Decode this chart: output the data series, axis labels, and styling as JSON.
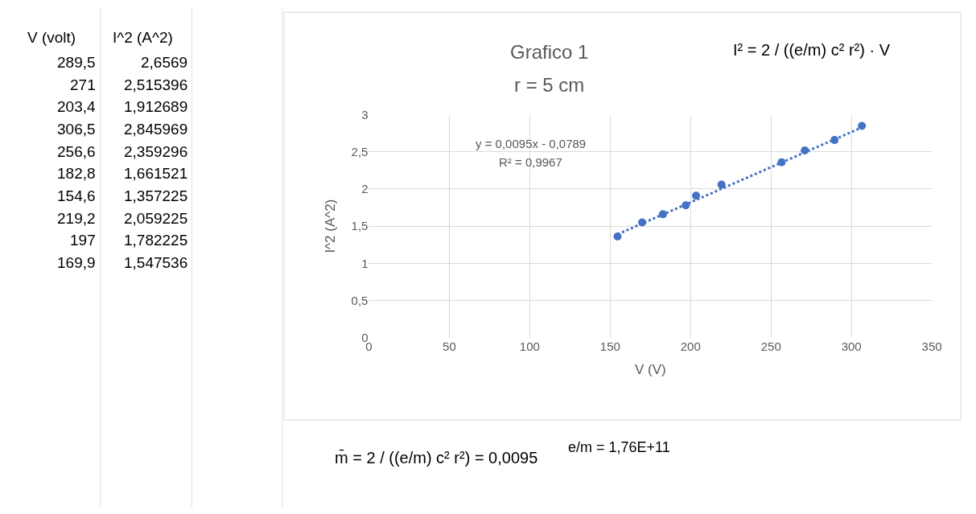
{
  "chart_data": [
    {
      "type": "other",
      "annotations": [
        "V (volt)",
        "I^2 (A^2)",
        "289,5",
        "2,6569",
        "271",
        "2,515396",
        "203,4",
        "1,912689",
        "306,5",
        "2,845969",
        "256,6",
        "2,359296",
        "182,8",
        "1,661521",
        "154,6",
        "1,357225",
        "219,2",
        "2,059225",
        "197",
        "1,782225",
        "169,9",
        "1,547536"
      ]
    },
    {
      "type": "scatter",
      "title": "Grafico 1",
      "subtitle": "r = 5 cm",
      "xlabel": "V (V)",
      "ylabel": "I^2 (A^2)",
      "x": [
        289.5,
        271,
        203.4,
        306.5,
        256.6,
        182.8,
        154.6,
        219.2,
        197,
        169.9
      ],
      "series": [
        {
          "color": "#4472c4",
          "values": [
            2.66,
            2.52,
            1.91,
            2.85,
            2.36,
            1.66,
            1.36,
            2.06,
            1.78,
            1.55
          ]
        },
        {
          "type": "line",
          "color": "#4472c4",
          "line_style": "dotted",
          "marker": "none",
          "x": [
            154.6,
            306.5
          ],
          "values": [
            1.39,
            2.83
          ]
        }
      ],
      "marker": "circle",
      "xlim": [
        0,
        350
      ],
      "xticks": [
        0,
        50,
        100,
        150,
        200,
        250,
        300,
        350
      ],
      "ylim": [
        0,
        3
      ],
      "yticks": [
        0,
        {
          "value": 0.5,
          "label": "0,5"
        },
        1,
        {
          "value": 1.5,
          "label": "1,5"
        },
        2,
        {
          "value": 2.5,
          "label": "2,5"
        },
        3
      ],
      "grid": true,
      "annotations": [
        "y = 0,0095x - 0,0789",
        "R² = 0,9967",
        "I² = 2 / ((e/m) c² r²) · V",
        "m̄ = 2 / ((e/m) c² r²) = 0,0095",
        "e/m = 1,76E+11"
      ]
    }
  ]
}
